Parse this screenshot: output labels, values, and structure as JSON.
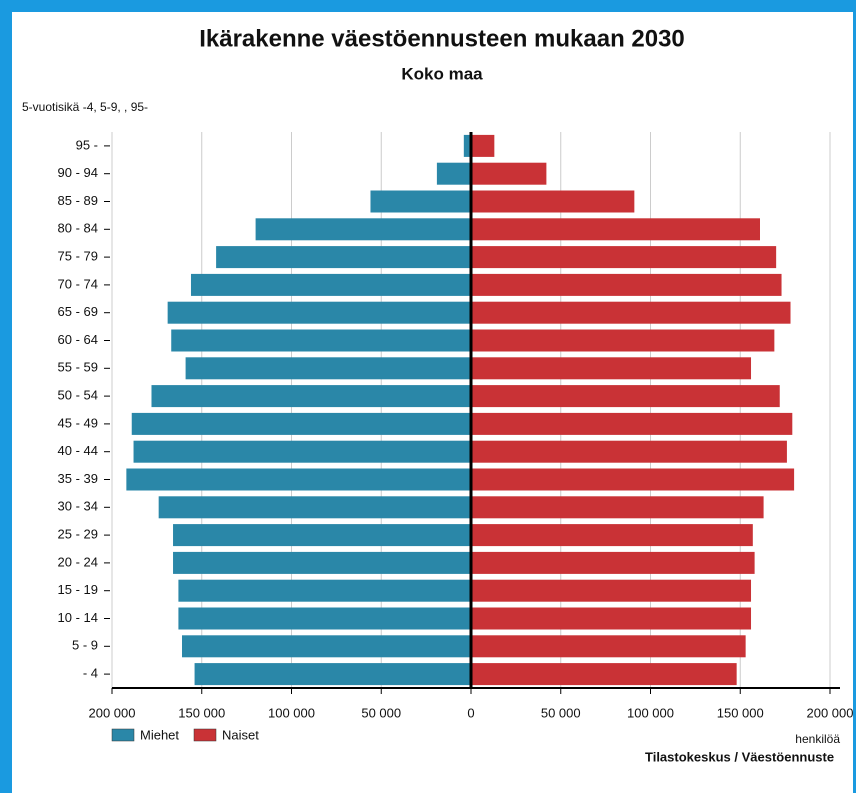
{
  "chart_data": {
    "type": "pyramid",
    "title": "Ikärakenne väestöennusteen mukaan 2030",
    "subtitle": "Koko maa",
    "y_label": "5-vuotisikä -4, 5-9, , 95-",
    "x_label": "henkilöä",
    "source": "Tilastokeskus / Väestöennuste",
    "categories": [
      "95 -",
      "90 - 94",
      "85 - 89",
      "80 - 84",
      "75 - 79",
      "70 - 74",
      "65 - 69",
      "60 - 64",
      "55 - 59",
      "50 - 54",
      "45 - 49",
      "40 - 44",
      "35 - 39",
      "30 - 34",
      "25 - 29",
      "20 - 24",
      "15 - 19",
      "10 - 14",
      "5 - 9",
      "- 4"
    ],
    "series": [
      {
        "name": "Miehet",
        "color": "#2a87a8",
        "side": "left",
        "values": [
          4000,
          19000,
          56000,
          120000,
          142000,
          156000,
          169000,
          167000,
          159000,
          178000,
          189000,
          188000,
          192000,
          174000,
          166000,
          166000,
          163000,
          163000,
          161000,
          154000
        ]
      },
      {
        "name": "Naiset",
        "color": "#c93236",
        "side": "right",
        "values": [
          13000,
          42000,
          91000,
          161000,
          170000,
          173000,
          178000,
          169000,
          156000,
          172000,
          179000,
          176000,
          180000,
          163000,
          157000,
          158000,
          156000,
          156000,
          153000,
          148000
        ]
      }
    ],
    "xlim": [
      -200000,
      200000
    ],
    "xticks": [
      {
        "value": -200000,
        "label": "200 000"
      },
      {
        "value": -150000,
        "label": "150 000"
      },
      {
        "value": -100000,
        "label": "100 000"
      },
      {
        "value": -50000,
        "label": "50 000"
      },
      0,
      {
        "value": 50000,
        "label": "50 000"
      },
      {
        "value": 100000,
        "label": "100 000"
      },
      {
        "value": 150000,
        "label": "150 000"
      },
      {
        "value": 200000,
        "label": "200 000"
      }
    ],
    "grid": true
  }
}
